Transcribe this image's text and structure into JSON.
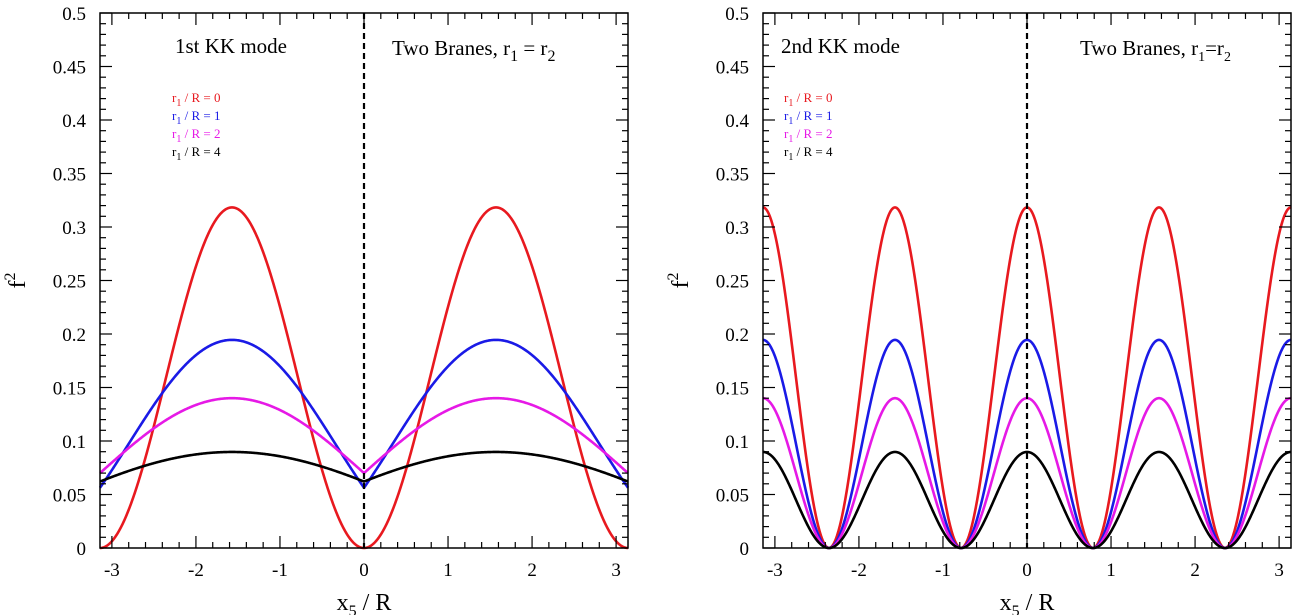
{
  "chart_data": [
    {
      "type": "line",
      "panel_label": "1st KK mode",
      "title_main": "Two Branes, r",
      "title_sub1": "1",
      "title_eq": " = r",
      "title_sub2": "2",
      "xlabel_main": "x",
      "xlabel_sub": "5",
      "xlabel_rest": " / R",
      "ylabel_main": "f",
      "ylabel_sup": "2",
      "xlim": [
        -3.1416,
        3.1416
      ],
      "ylim": [
        0,
        0.5
      ],
      "xticks": [
        -3,
        -2,
        -1,
        0,
        1,
        2,
        3
      ],
      "xtick_labels": [
        "-3",
        "-2",
        "-1",
        "0",
        "1",
        "2",
        "3"
      ],
      "yticks": [
        0,
        0.05,
        0.1,
        0.15,
        0.2,
        0.25,
        0.3,
        0.35,
        0.4,
        0.45,
        0.5
      ],
      "ytick_labels": [
        "0",
        "0.05",
        "0.1",
        "0.15",
        "0.2",
        "0.25",
        "0.3",
        "0.35",
        "0.4",
        "0.45",
        "0.5"
      ],
      "vline_x": 0,
      "series": [
        {
          "legend_main": "r",
          "legend_sub": "1",
          "legend_rest": " / R = 0",
          "color": "#e8191f",
          "alpha": 0
        },
        {
          "legend_main": "r",
          "legend_sub": "1",
          "legend_rest": " / R = 1",
          "color": "#1a1ae6",
          "alpha": 1
        },
        {
          "legend_main": "r",
          "legend_sub": "1",
          "legend_rest": " / R = 2",
          "color": "#e619e6",
          "alpha": 2
        },
        {
          "legend_main": "r",
          "legend_sub": "1",
          "legend_rest": " / R = 4",
          "color": "#000000",
          "alpha": 4
        }
      ]
    },
    {
      "type": "line",
      "panel_label": "2nd KK mode",
      "title_main": "Two Branes, r",
      "title_sub1": "1",
      "title_eq": "=r",
      "title_sub2": "2",
      "xlabel_main": "x",
      "xlabel_sub": "5",
      "xlabel_rest": " / R",
      "ylabel_main": "f",
      "ylabel_sup": "2",
      "xlim": [
        -3.1416,
        3.1416
      ],
      "ylim": [
        0,
        0.5
      ],
      "xticks": [
        -3,
        -2,
        -1,
        0,
        1,
        2,
        3
      ],
      "xtick_labels": [
        "-3",
        "-2",
        "-1",
        "0",
        "1",
        "2",
        "3"
      ],
      "yticks": [
        0,
        0.05,
        0.1,
        0.15,
        0.2,
        0.25,
        0.3,
        0.35,
        0.4,
        0.45,
        0.5
      ],
      "ytick_labels": [
        "0",
        "0.05",
        "0.1",
        "0.15",
        "0.2",
        "0.25",
        "0.3",
        "0.35",
        "0.4",
        "0.45",
        "0.5"
      ],
      "vline_x": 0,
      "series": [
        {
          "legend_main": "r",
          "legend_sub": "1",
          "legend_rest": " / R = 0",
          "color": "#e8191f",
          "alpha": 0
        },
        {
          "legend_main": "r",
          "legend_sub": "1",
          "legend_rest": " / R = 1",
          "color": "#1a1ae6",
          "alpha": 1
        },
        {
          "legend_main": "r",
          "legend_sub": "1",
          "legend_rest": " / R = 2",
          "color": "#e619e6",
          "alpha": 2
        },
        {
          "legend_main": "r",
          "legend_sub": "1",
          "legend_rest": " / R = 4",
          "color": "#000000",
          "alpha": 4
        }
      ]
    }
  ]
}
